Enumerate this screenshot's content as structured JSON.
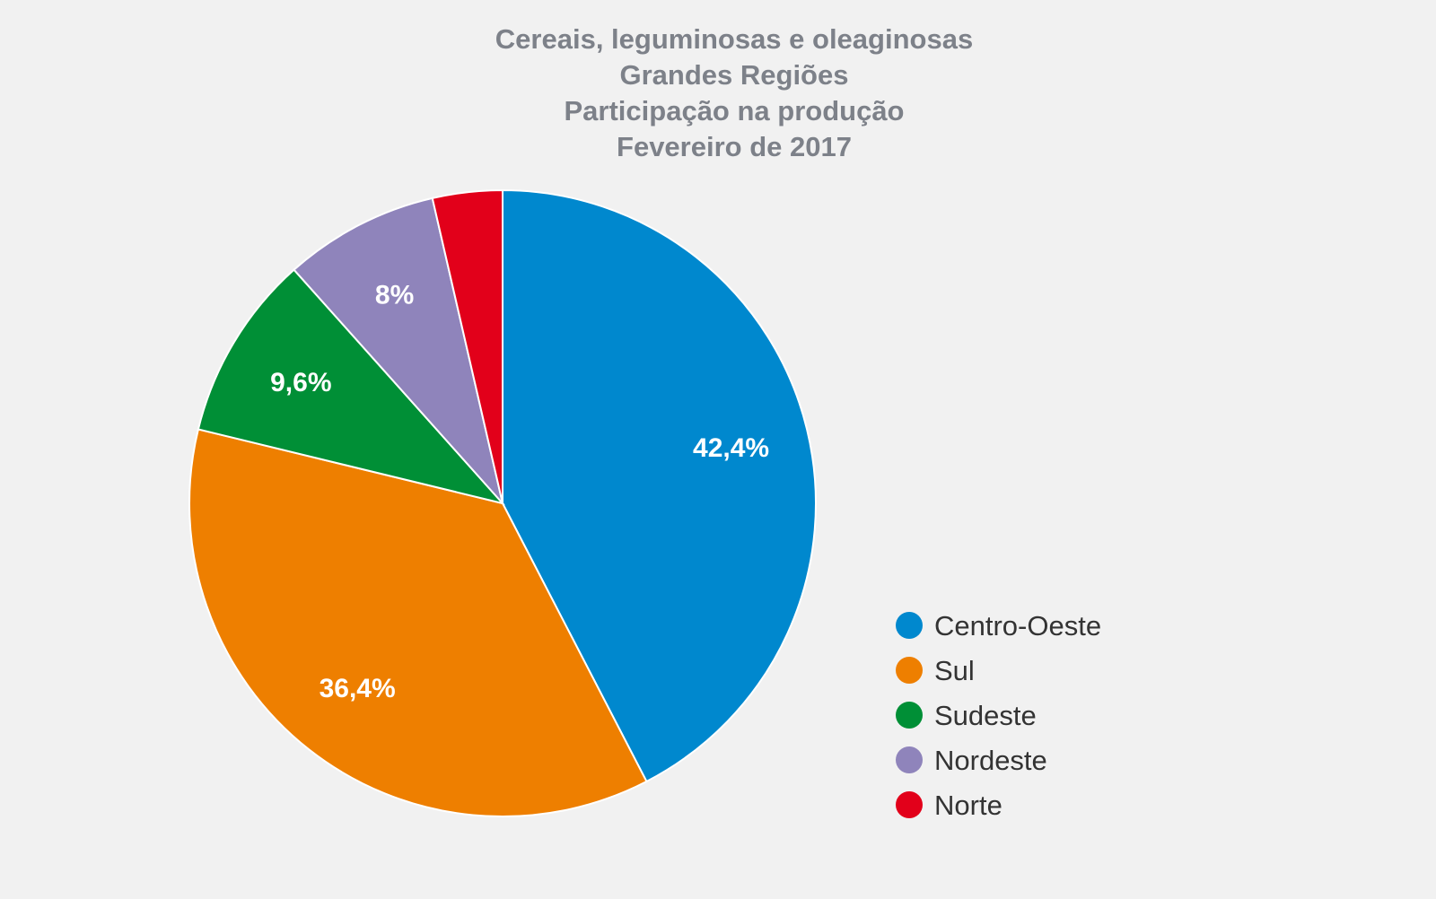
{
  "chart_data": {
    "type": "pie",
    "title_lines": [
      "Cereais, leguminosas e oleaginosas",
      "Grandes Regiões",
      "Participação na produção",
      "Fevereiro de 2017"
    ],
    "legend_position": "right-bottom",
    "slices": [
      {
        "name": "Centro-Oeste",
        "value": 42.4,
        "label": "42,4%",
        "color": "#0088ce"
      },
      {
        "name": "Sul",
        "value": 36.4,
        "label": "36,4%",
        "color": "#ee7f00"
      },
      {
        "name": "Sudeste",
        "value": 9.6,
        "label": "9,6%",
        "color": "#008f36"
      },
      {
        "name": "Nordeste",
        "value": 8.0,
        "label": "8%",
        "color": "#8f84bb"
      },
      {
        "name": "Norte",
        "value": 3.6,
        "label": "",
        "color": "#e2001a"
      }
    ]
  }
}
